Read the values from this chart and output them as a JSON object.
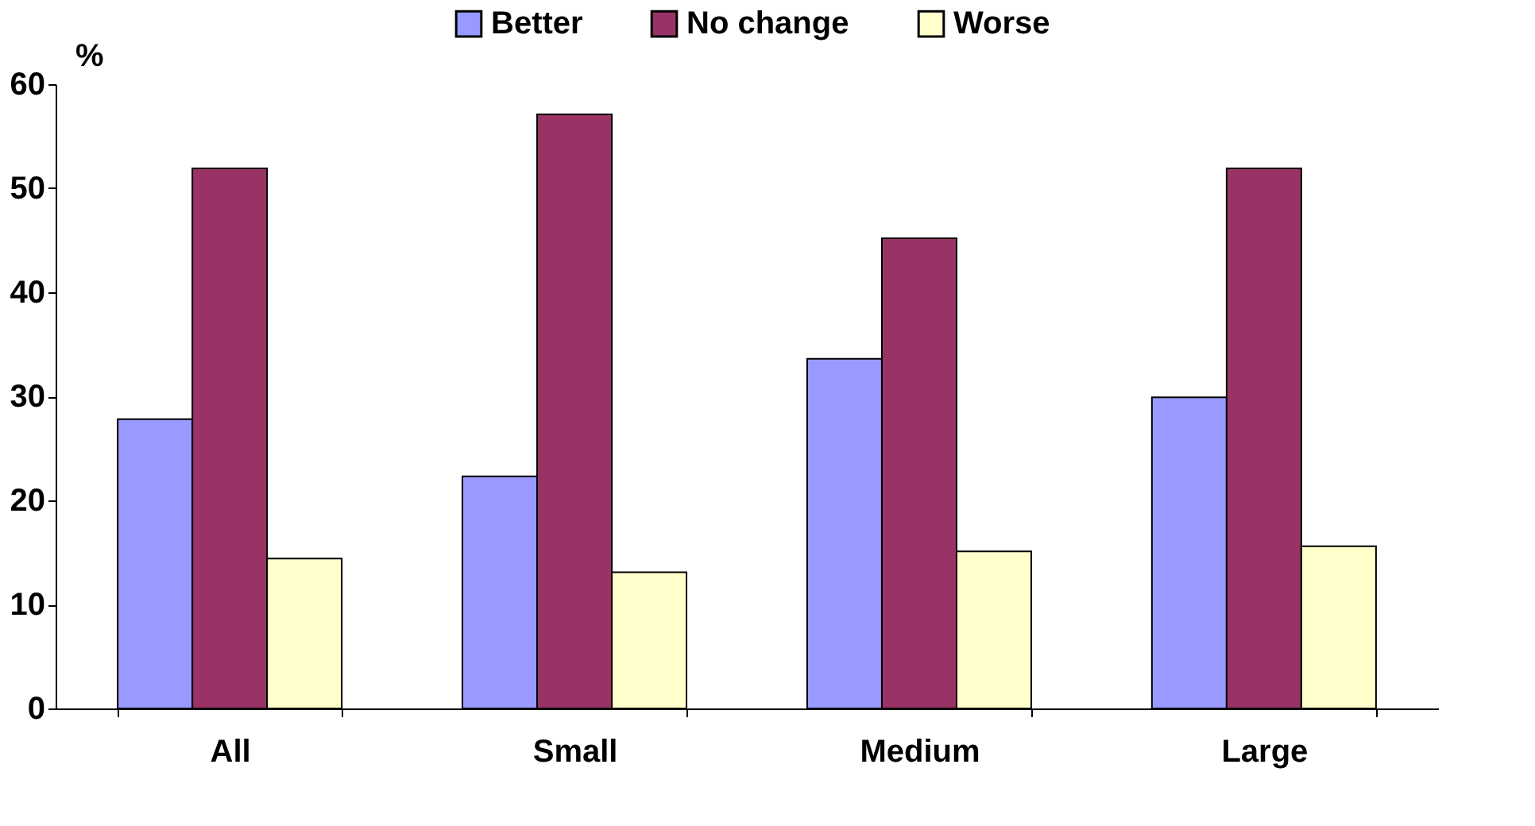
{
  "chart_data": {
    "type": "bar",
    "ylabel": "%",
    "categories": [
      "All",
      "Small",
      "Medium",
      "Large"
    ],
    "series": [
      {
        "name": "Better",
        "color": "#9999ff",
        "values": [
          27.8,
          22.3,
          33.6,
          29.9
        ]
      },
      {
        "name": "No change",
        "color": "#993366",
        "values": [
          51.9,
          57.1,
          45.2,
          51.9
        ]
      },
      {
        "name": "Worse",
        "color": "#ffffcc",
        "values": [
          14.4,
          13.1,
          15.1,
          15.6
        ]
      }
    ],
    "ylim": [
      0,
      60
    ],
    "yticks": [
      0,
      10,
      20,
      30,
      40,
      50,
      60
    ],
    "grid": false,
    "legend": "top"
  }
}
